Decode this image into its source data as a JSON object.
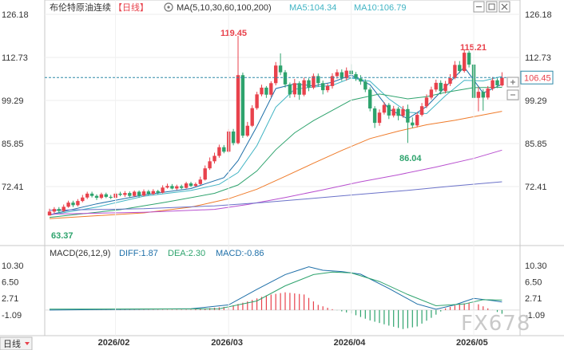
{
  "header": {
    "instrument": "布伦特原油连续",
    "period_label": "【日线】",
    "ma_label": "MA(5,10,30,60,100,200)",
    "ma5_label": "MA5:104.34",
    "ma10_label": "MA10:106.79"
  },
  "macd_header": {
    "label": "MACD(26,12,9)",
    "diff_label": "DIFF:1.87",
    "dea_label": "DEA:2.30",
    "macd_label": "MACD:-0.86"
  },
  "watermark": "FX678",
  "bottom_tab": "日线",
  "icons": [
    "settings-icon",
    "minimize-icon",
    "restore-icon",
    "close-icon",
    "zoom-in-icon",
    "zoom-out-icon",
    "expand-icon"
  ],
  "colors": {
    "up": "#e8424c",
    "down": "#2ea36d",
    "ma5": "#1e6fa8",
    "ma10": "#41b4c4",
    "ma30": "#2ea36d",
    "ma60": "#ef7b2a",
    "ma100": "#b84fcf",
    "ma200": "#6b72c9",
    "diff": "#1e6fa8",
    "dea": "#2ea36d",
    "last_price_line": "#2e8aa8",
    "last_price_fill": "#2e8aa8"
  },
  "chart_data": {
    "type": "candlestick",
    "price_axis": {
      "ticks": [
        "126.18",
        "112.73",
        "99.29",
        "85.85",
        "72.41"
      ],
      "range": [
        58.97,
        126.18
      ]
    },
    "x_ticks": [
      "2026/02",
      "2026/03",
      "2026/04",
      "2026/05"
    ],
    "last_price": "106.45",
    "annotations": {
      "high1": "119.45",
      "high2": "115.21",
      "low1": "86.04",
      "low0": "63.37"
    },
    "candles": [
      [
        63.4,
        64.6,
        65.5,
        63.37
      ],
      [
        64.6,
        65.4,
        66.0,
        64.0
      ],
      [
        65.4,
        64.8,
        66.0,
        64.2
      ],
      [
        64.8,
        66.1,
        66.8,
        64.5
      ],
      [
        66.1,
        67.4,
        68.0,
        65.8
      ],
      [
        67.4,
        66.6,
        68.0,
        66.0
      ],
      [
        66.6,
        67.9,
        68.5,
        66.2
      ],
      [
        67.9,
        69.0,
        69.8,
        67.5
      ],
      [
        69.0,
        70.2,
        70.8,
        68.5
      ],
      [
        70.2,
        69.5,
        70.8,
        69.0
      ],
      [
        69.5,
        68.9,
        70.0,
        68.2
      ],
      [
        68.9,
        70.0,
        70.5,
        68.5
      ],
      [
        70.0,
        69.2,
        70.5,
        68.8
      ],
      [
        69.2,
        68.9,
        69.8,
        68.5
      ],
      [
        68.9,
        70.2,
        70.8,
        68.6
      ],
      [
        70.2,
        69.8,
        70.8,
        69.4
      ],
      [
        69.8,
        70.4,
        71.0,
        69.2
      ],
      [
        70.4,
        69.5,
        70.9,
        69.0
      ],
      [
        69.5,
        70.8,
        71.2,
        69.2
      ],
      [
        70.8,
        69.6,
        71.2,
        69.0
      ],
      [
        69.6,
        70.9,
        71.5,
        69.3
      ],
      [
        70.9,
        70.1,
        71.4,
        69.7
      ],
      [
        70.1,
        71.0,
        71.6,
        69.8
      ],
      [
        71.0,
        70.5,
        71.4,
        70.0
      ],
      [
        70.5,
        72.1,
        72.8,
        70.3
      ],
      [
        72.1,
        72.6,
        73.3,
        71.8
      ],
      [
        72.6,
        71.8,
        73.2,
        71.5
      ],
      [
        71.8,
        72.5,
        73.0,
        71.3
      ],
      [
        72.5,
        72.0,
        73.0,
        71.6
      ],
      [
        72.0,
        73.4,
        73.9,
        71.8
      ],
      [
        73.4,
        72.6,
        73.9,
        72.3
      ],
      [
        72.6,
        73.2,
        73.7,
        72.4
      ],
      [
        73.2,
        74.6,
        75.5,
        72.9
      ],
      [
        74.6,
        78.1,
        79.0,
        74.3
      ],
      [
        78.1,
        80.3,
        81.5,
        77.6
      ],
      [
        80.3,
        82.0,
        83.0,
        79.6
      ],
      [
        82.0,
        84.7,
        85.5,
        81.4
      ],
      [
        84.7,
        83.3,
        85.4,
        82.8
      ],
      [
        83.3,
        89.6,
        90.4,
        83.0
      ],
      [
        89.6,
        86.0,
        90.4,
        85.3
      ],
      [
        86.0,
        107.2,
        119.45,
        85.6
      ],
      [
        107.2,
        88.3,
        108.0,
        87.6
      ],
      [
        88.3,
        91.4,
        92.6,
        87.9
      ],
      [
        91.4,
        96.9,
        97.8,
        91.0
      ],
      [
        96.9,
        101.2,
        102.0,
        96.4
      ],
      [
        101.2,
        103.3,
        104.2,
        100.6
      ],
      [
        103.3,
        101.1,
        103.8,
        100.1
      ],
      [
        101.1,
        104.7,
        105.3,
        100.4
      ],
      [
        104.7,
        110.2,
        111.3,
        104.0
      ],
      [
        110.2,
        108.1,
        114.0,
        107.2
      ],
      [
        108.1,
        104.3,
        108.8,
        103.3
      ],
      [
        104.3,
        101.2,
        104.9,
        100.1
      ],
      [
        101.2,
        104.7,
        106.0,
        100.3
      ],
      [
        104.7,
        101.1,
        105.3,
        99.5
      ],
      [
        101.1,
        105.6,
        106.4,
        100.6
      ],
      [
        105.6,
        103.3,
        106.2,
        102.2
      ],
      [
        103.3,
        106.9,
        107.7,
        102.8
      ],
      [
        106.9,
        104.7,
        107.7,
        103.6
      ],
      [
        104.7,
        102.5,
        105.5,
        101.2
      ],
      [
        102.5,
        103.8,
        104.5,
        101.8
      ],
      [
        103.8,
        106.9,
        107.8,
        103.0
      ],
      [
        106.9,
        108.1,
        109.0,
        106.1
      ],
      [
        108.1,
        106.2,
        109.0,
        105.4
      ],
      [
        106.2,
        108.6,
        109.6,
        105.5
      ],
      [
        108.6,
        107.5,
        110.6,
        106.5
      ],
      [
        107.5,
        106.2,
        108.2,
        105.4
      ],
      [
        106.2,
        105.2,
        107.2,
        104.2
      ],
      [
        105.2,
        102.7,
        105.9,
        101.9
      ],
      [
        102.7,
        96.8,
        103.4,
        95.9
      ],
      [
        96.8,
        92.3,
        97.5,
        90.7
      ],
      [
        92.3,
        95.5,
        96.5,
        91.4
      ],
      [
        95.5,
        97.9,
        98.8,
        94.9
      ],
      [
        97.9,
        94.6,
        98.5,
        93.5
      ],
      [
        94.6,
        96.7,
        97.6,
        94.0
      ],
      [
        96.7,
        94.5,
        97.3,
        93.1
      ],
      [
        94.5,
        96.6,
        97.6,
        93.9
      ],
      [
        96.6,
        92.4,
        98.0,
        86.04
      ],
      [
        92.4,
        91.5,
        94.0,
        90.7
      ],
      [
        91.5,
        94.8,
        95.6,
        90.9
      ],
      [
        94.8,
        97.5,
        98.5,
        94.3
      ],
      [
        97.5,
        100.2,
        101.2,
        96.9
      ],
      [
        100.2,
        102.7,
        103.6,
        99.6
      ],
      [
        102.7,
        104.8,
        105.8,
        102.0
      ],
      [
        104.8,
        102.2,
        105.6,
        101.2
      ],
      [
        102.2,
        104.5,
        105.4,
        101.5
      ],
      [
        104.5,
        106.3,
        107.5,
        103.8
      ],
      [
        106.3,
        110.4,
        111.6,
        105.9
      ],
      [
        110.4,
        108.5,
        111.6,
        107.8
      ],
      [
        108.5,
        114.2,
        115.21,
        108.0
      ],
      [
        114.2,
        110.5,
        114.8,
        109.6
      ],
      [
        110.5,
        100.1,
        111.0,
        99.3
      ],
      [
        100.1,
        102.0,
        103.5,
        95.9
      ],
      [
        102.0,
        100.2,
        102.8,
        96.1
      ],
      [
        100.2,
        103.0,
        103.8,
        99.6
      ],
      [
        103.0,
        105.6,
        106.6,
        102.4
      ],
      [
        105.6,
        104.0,
        106.2,
        103.2
      ],
      [
        104.0,
        106.45,
        108.1,
        103.7
      ]
    ],
    "ma_series": [
      {
        "name": "MA5",
        "values": [
          [
            0,
            63.6
          ],
          [
            10,
            67.0
          ],
          [
            20,
            69.8
          ],
          [
            30,
            71.8
          ],
          [
            37,
            75.2
          ],
          [
            40,
            80.5
          ],
          [
            44,
            91.2
          ],
          [
            48,
            103.0
          ],
          [
            52,
            104.5
          ],
          [
            56,
            103.8
          ],
          [
            60,
            105.0
          ],
          [
            64,
            107.2
          ],
          [
            68,
            104.2
          ],
          [
            72,
            96.6
          ],
          [
            76,
            93.6
          ],
          [
            80,
            97.4
          ],
          [
            84,
            103.5
          ],
          [
            88,
            109.7
          ],
          [
            92,
            101.6
          ],
          [
            96,
            104.34
          ]
        ]
      },
      {
        "name": "MA10",
        "values": [
          [
            0,
            63.5
          ],
          [
            10,
            66.0
          ],
          [
            20,
            69.4
          ],
          [
            30,
            71.2
          ],
          [
            36,
            73.1
          ],
          [
            40,
            76.8
          ],
          [
            44,
            85.2
          ],
          [
            48,
            97.2
          ],
          [
            52,
            102.8
          ],
          [
            56,
            103.5
          ],
          [
            60,
            104.0
          ],
          [
            64,
            106.3
          ],
          [
            68,
            105.3
          ],
          [
            72,
            99.8
          ],
          [
            76,
            95.6
          ],
          [
            80,
            95.2
          ],
          [
            84,
            100.8
          ],
          [
            88,
            105.6
          ],
          [
            92,
            105.4
          ],
          [
            96,
            106.79
          ]
        ]
      },
      {
        "name": "MA30",
        "values": [
          [
            0,
            62.8
          ],
          [
            15,
            65.2
          ],
          [
            25,
            67.6
          ],
          [
            35,
            70.3
          ],
          [
            40,
            72.9
          ],
          [
            44,
            77.3
          ],
          [
            48,
            83.9
          ],
          [
            52,
            89.2
          ],
          [
            56,
            93.0
          ],
          [
            60,
            96.2
          ],
          [
            64,
            99.4
          ],
          [
            70,
            101.3
          ],
          [
            76,
            99.8
          ],
          [
            80,
            100.5
          ],
          [
            84,
            101.8
          ],
          [
            90,
            103.3
          ],
          [
            96,
            103.4
          ]
        ]
      },
      {
        "name": "MA60",
        "values": [
          [
            0,
            62.4
          ],
          [
            20,
            64.2
          ],
          [
            30,
            66.0
          ],
          [
            38,
            68.6
          ],
          [
            44,
            71.6
          ],
          [
            50,
            75.6
          ],
          [
            56,
            79.7
          ],
          [
            62,
            83.7
          ],
          [
            68,
            87.4
          ],
          [
            74,
            89.7
          ],
          [
            80,
            91.7
          ],
          [
            86,
            93.1
          ],
          [
            96,
            95.9
          ]
        ]
      },
      {
        "name": "MA100",
        "values": [
          [
            0,
            63.8
          ],
          [
            20,
            64.4
          ],
          [
            35,
            65.3
          ],
          [
            42,
            66.8
          ],
          [
            50,
            69.0
          ],
          [
            58,
            71.4
          ],
          [
            66,
            73.9
          ],
          [
            74,
            76.1
          ],
          [
            82,
            78.5
          ],
          [
            90,
            81.2
          ],
          [
            96,
            83.8
          ]
        ]
      },
      {
        "name": "MA200",
        "values": [
          [
            0,
            65.0
          ],
          [
            20,
            65.5
          ],
          [
            35,
            66.4
          ],
          [
            45,
            67.4
          ],
          [
            55,
            68.6
          ],
          [
            65,
            69.9
          ],
          [
            75,
            71.1
          ],
          [
            85,
            72.5
          ],
          [
            96,
            73.9
          ]
        ]
      }
    ],
    "macd_axis": {
      "ticks": [
        "10.30",
        "6.50",
        "2.71",
        "-1.09"
      ],
      "range": [
        -5.0,
        11.6
      ]
    },
    "macd": {
      "diff": [
        [
          0,
          0.0
        ],
        [
          30,
          0.3
        ],
        [
          38,
          1.2
        ],
        [
          44,
          4.8
        ],
        [
          50,
          8.2
        ],
        [
          55,
          10.0
        ],
        [
          58,
          9.2
        ],
        [
          62,
          8.9
        ],
        [
          66,
          8.3
        ],
        [
          72,
          5.0
        ],
        [
          78,
          1.4
        ],
        [
          82,
          0.2
        ],
        [
          86,
          1.2
        ],
        [
          90,
          2.7
        ],
        [
          94,
          2.2
        ],
        [
          96,
          1.87
        ]
      ],
      "dea": [
        [
          0,
          0.2
        ],
        [
          36,
          0.3
        ],
        [
          44,
          2.1
        ],
        [
          50,
          5.6
        ],
        [
          56,
          8.2
        ],
        [
          60,
          8.8
        ],
        [
          64,
          8.6
        ],
        [
          70,
          6.6
        ],
        [
          76,
          3.6
        ],
        [
          82,
          1.0
        ],
        [
          88,
          1.4
        ],
        [
          92,
          2.4
        ],
        [
          96,
          2.3
        ]
      ],
      "hist": [
        [
          0,
          0.0
        ],
        [
          30,
          0.1
        ],
        [
          38,
          0.8
        ],
        [
          42,
          2.0
        ],
        [
          46,
          3.4
        ],
        [
          50,
          4.1
        ],
        [
          54,
          3.6
        ],
        [
          57,
          1.2
        ],
        [
          60,
          0.2
        ],
        [
          64,
          -0.8
        ],
        [
          68,
          -2.4
        ],
        [
          72,
          -3.6
        ],
        [
          75,
          -4.4
        ],
        [
          78,
          -3.8
        ],
        [
          81,
          -1.8
        ],
        [
          84,
          0.4
        ],
        [
          87,
          1.4
        ],
        [
          90,
          1.8
        ],
        [
          93,
          0.4
        ],
        [
          96,
          -0.86
        ]
      ]
    }
  }
}
